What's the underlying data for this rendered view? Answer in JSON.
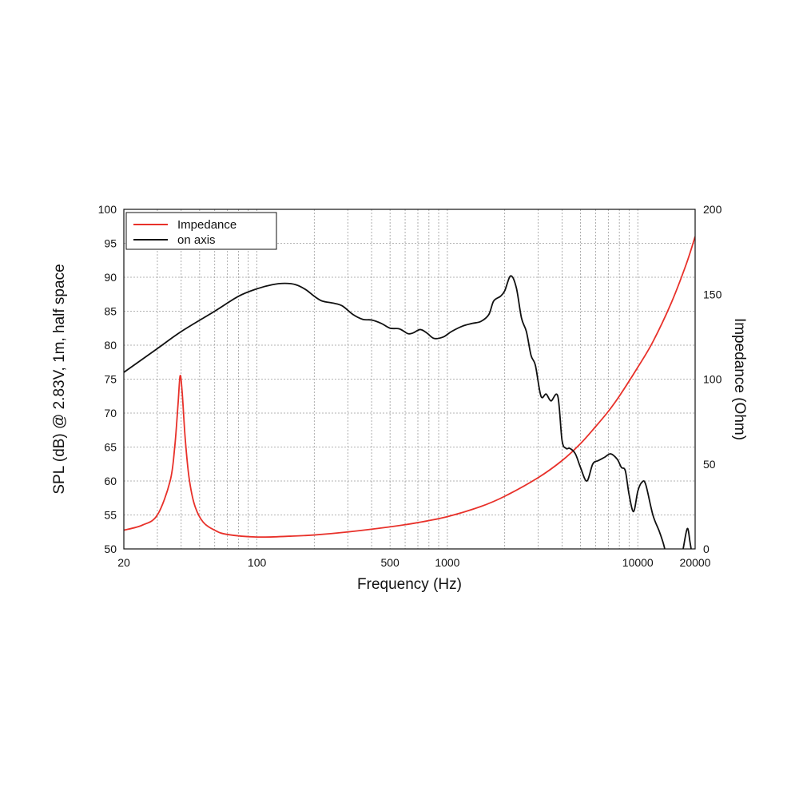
{
  "chart_data": {
    "type": "line",
    "xlabel": "Frequency (Hz)",
    "ylabel_left": "SPL (dB) @ 2.83V, 1m, half space",
    "ylabel_right": "Impedance (Ohm)",
    "x_scale": "log",
    "xlim": [
      20,
      20000
    ],
    "ylim_left": [
      50,
      100
    ],
    "ylim_right": [
      0,
      200
    ],
    "x_ticks": [
      20,
      100,
      500,
      1000,
      10000,
      20000
    ],
    "x_tick_labels": [
      "20",
      "100",
      "500",
      "1000",
      "10000",
      "20000"
    ],
    "y_left_ticks": [
      50,
      55,
      60,
      65,
      70,
      75,
      80,
      85,
      90,
      95,
      100
    ],
    "y_left_tick_labels": [
      "50",
      "55",
      "60",
      "65",
      "70",
      "75",
      "80",
      "85",
      "90",
      "95",
      "100"
    ],
    "y_right_ticks": [
      0,
      50,
      100,
      150,
      200
    ],
    "y_right_tick_labels": [
      "0",
      "50",
      "100",
      "150",
      "200"
    ],
    "grid": true,
    "legend_position": "top-left",
    "series": [
      {
        "name": "Impedance",
        "axis": "right",
        "color": "#e8312a",
        "points": [
          [
            20,
            11
          ],
          [
            25,
            14
          ],
          [
            30,
            20
          ],
          [
            35,
            40
          ],
          [
            37,
            60
          ],
          [
            38.5,
            85
          ],
          [
            39.5,
            102
          ],
          [
            40.5,
            92
          ],
          [
            42,
            65
          ],
          [
            44,
            42
          ],
          [
            47,
            26
          ],
          [
            52,
            16
          ],
          [
            60,
            11
          ],
          [
            70,
            8.5
          ],
          [
            100,
            7
          ],
          [
            150,
            7.5
          ],
          [
            200,
            8.2
          ],
          [
            300,
            10
          ],
          [
            500,
            13
          ],
          [
            700,
            15.5
          ],
          [
            1000,
            19
          ],
          [
            1500,
            25
          ],
          [
            2000,
            31
          ],
          [
            3000,
            42
          ],
          [
            4000,
            52
          ],
          [
            5000,
            62
          ],
          [
            6000,
            72
          ],
          [
            7000,
            81
          ],
          [
            8000,
            90
          ],
          [
            10000,
            107
          ],
          [
            12000,
            122
          ],
          [
            15000,
            145
          ],
          [
            18000,
            168
          ],
          [
            20000,
            184
          ]
        ]
      },
      {
        "name": "on axis",
        "axis": "left",
        "color": "#111111",
        "points": [
          [
            20,
            76
          ],
          [
            30,
            79.5
          ],
          [
            40,
            82
          ],
          [
            60,
            85
          ],
          [
            80,
            87.2
          ],
          [
            100,
            88.3
          ],
          [
            120,
            88.9
          ],
          [
            140,
            89.1
          ],
          [
            160,
            88.9
          ],
          [
            180,
            88.2
          ],
          [
            200,
            87.2
          ],
          [
            220,
            86.5
          ],
          [
            250,
            86.2
          ],
          [
            280,
            85.8
          ],
          [
            320,
            84.5
          ],
          [
            360,
            83.8
          ],
          [
            400,
            83.7
          ],
          [
            450,
            83.2
          ],
          [
            500,
            82.5
          ],
          [
            560,
            82.4
          ],
          [
            620,
            81.7
          ],
          [
            660,
            81.8
          ],
          [
            720,
            82.3
          ],
          [
            780,
            81.8
          ],
          [
            850,
            81
          ],
          [
            950,
            81.2
          ],
          [
            1050,
            82
          ],
          [
            1200,
            82.8
          ],
          [
            1350,
            83.2
          ],
          [
            1500,
            83.5
          ],
          [
            1650,
            84.5
          ],
          [
            1750,
            86.5
          ],
          [
            1900,
            87.2
          ],
          [
            2000,
            88
          ],
          [
            2150,
            90.2
          ],
          [
            2300,
            88.5
          ],
          [
            2450,
            84
          ],
          [
            2600,
            82
          ],
          [
            2750,
            78.5
          ],
          [
            2900,
            77
          ],
          [
            3100,
            72.5
          ],
          [
            3300,
            72.8
          ],
          [
            3500,
            71.8
          ],
          [
            3800,
            72.5
          ],
          [
            4000,
            66
          ],
          [
            4200,
            64.8
          ],
          [
            4400,
            64.8
          ],
          [
            4700,
            64
          ],
          [
            5000,
            62
          ],
          [
            5400,
            60
          ],
          [
            5800,
            62.5
          ],
          [
            6200,
            63
          ],
          [
            6700,
            63.5
          ],
          [
            7200,
            64
          ],
          [
            7800,
            63.2
          ],
          [
            8200,
            62
          ],
          [
            8600,
            61.5
          ],
          [
            9000,
            58
          ],
          [
            9500,
            55.5
          ],
          [
            10000,
            58.5
          ],
          [
            10500,
            59.8
          ],
          [
            11000,
            59.5
          ],
          [
            12000,
            55
          ],
          [
            13000,
            52.5
          ],
          [
            13800,
            50.2
          ],
          [
            14500,
            47
          ],
          [
            16000,
            45
          ],
          [
            17300,
            50
          ],
          [
            18200,
            53
          ],
          [
            18800,
            51
          ],
          [
            19300,
            49
          ]
        ]
      }
    ]
  }
}
